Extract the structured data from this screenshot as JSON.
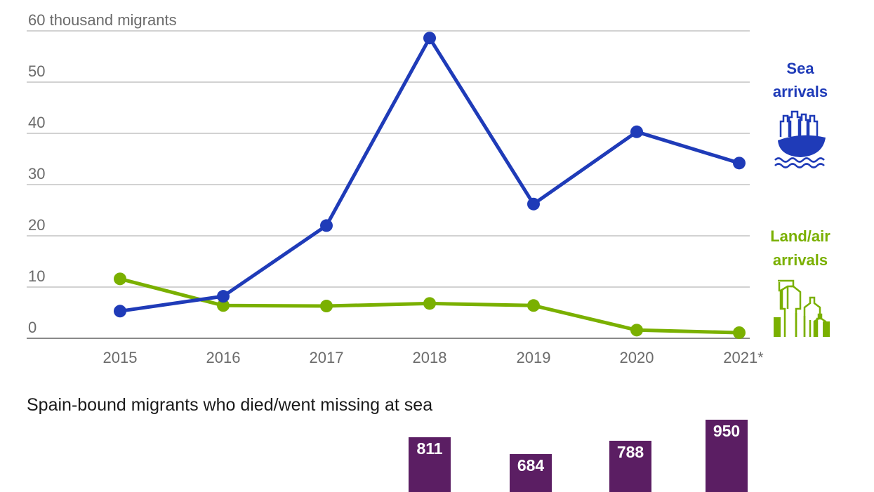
{
  "chart_data": [
    {
      "type": "line",
      "title": "",
      "ylabel": "60 thousand migrants",
      "xlabel": "",
      "x": [
        "2015",
        "2016",
        "2017",
        "2018",
        "2019",
        "2020",
        "2021*"
      ],
      "yticks": [
        "0",
        "10",
        "20",
        "30",
        "40",
        "50",
        "60 thousand migrants"
      ],
      "ylim": [
        0,
        60
      ],
      "grid": true,
      "legend_position": "right, inline labels with icons",
      "series": [
        {
          "name": "Sea arrivals",
          "color": "#1f3bb8",
          "icon": "boat-with-people-icon",
          "values": [
            5.3,
            8.2,
            22.0,
            58.6,
            26.2,
            40.3,
            34.2
          ]
        },
        {
          "name": "Land/air arrivals",
          "color": "#7ab000",
          "icon": "travelers-with-luggage-icon",
          "values": [
            11.6,
            6.4,
            6.3,
            6.8,
            6.4,
            1.6,
            1.1
          ]
        }
      ]
    },
    {
      "type": "bar",
      "title": "Spain-bound migrants who died/went missing at sea",
      "categories": [
        "2018",
        "2019",
        "2020",
        "2021*"
      ],
      "values": [
        811,
        684,
        788,
        950
      ],
      "color": "#5b1e63",
      "data_labels": true
    }
  ],
  "legend": {
    "sea": {
      "line1": "Sea",
      "line2": "arrivals",
      "color": "#1f3bb8"
    },
    "land": {
      "line1": "Land/air",
      "line2": "arrivals",
      "color": "#7ab000"
    }
  },
  "deaths": {
    "title": "Spain-bound migrants who died/went missing at sea",
    "bars": [
      {
        "year": "2018",
        "value": "811"
      },
      {
        "year": "2019",
        "value": "684"
      },
      {
        "year": "2020",
        "value": "788"
      },
      {
        "year": "2021*",
        "value": "950"
      }
    ]
  }
}
